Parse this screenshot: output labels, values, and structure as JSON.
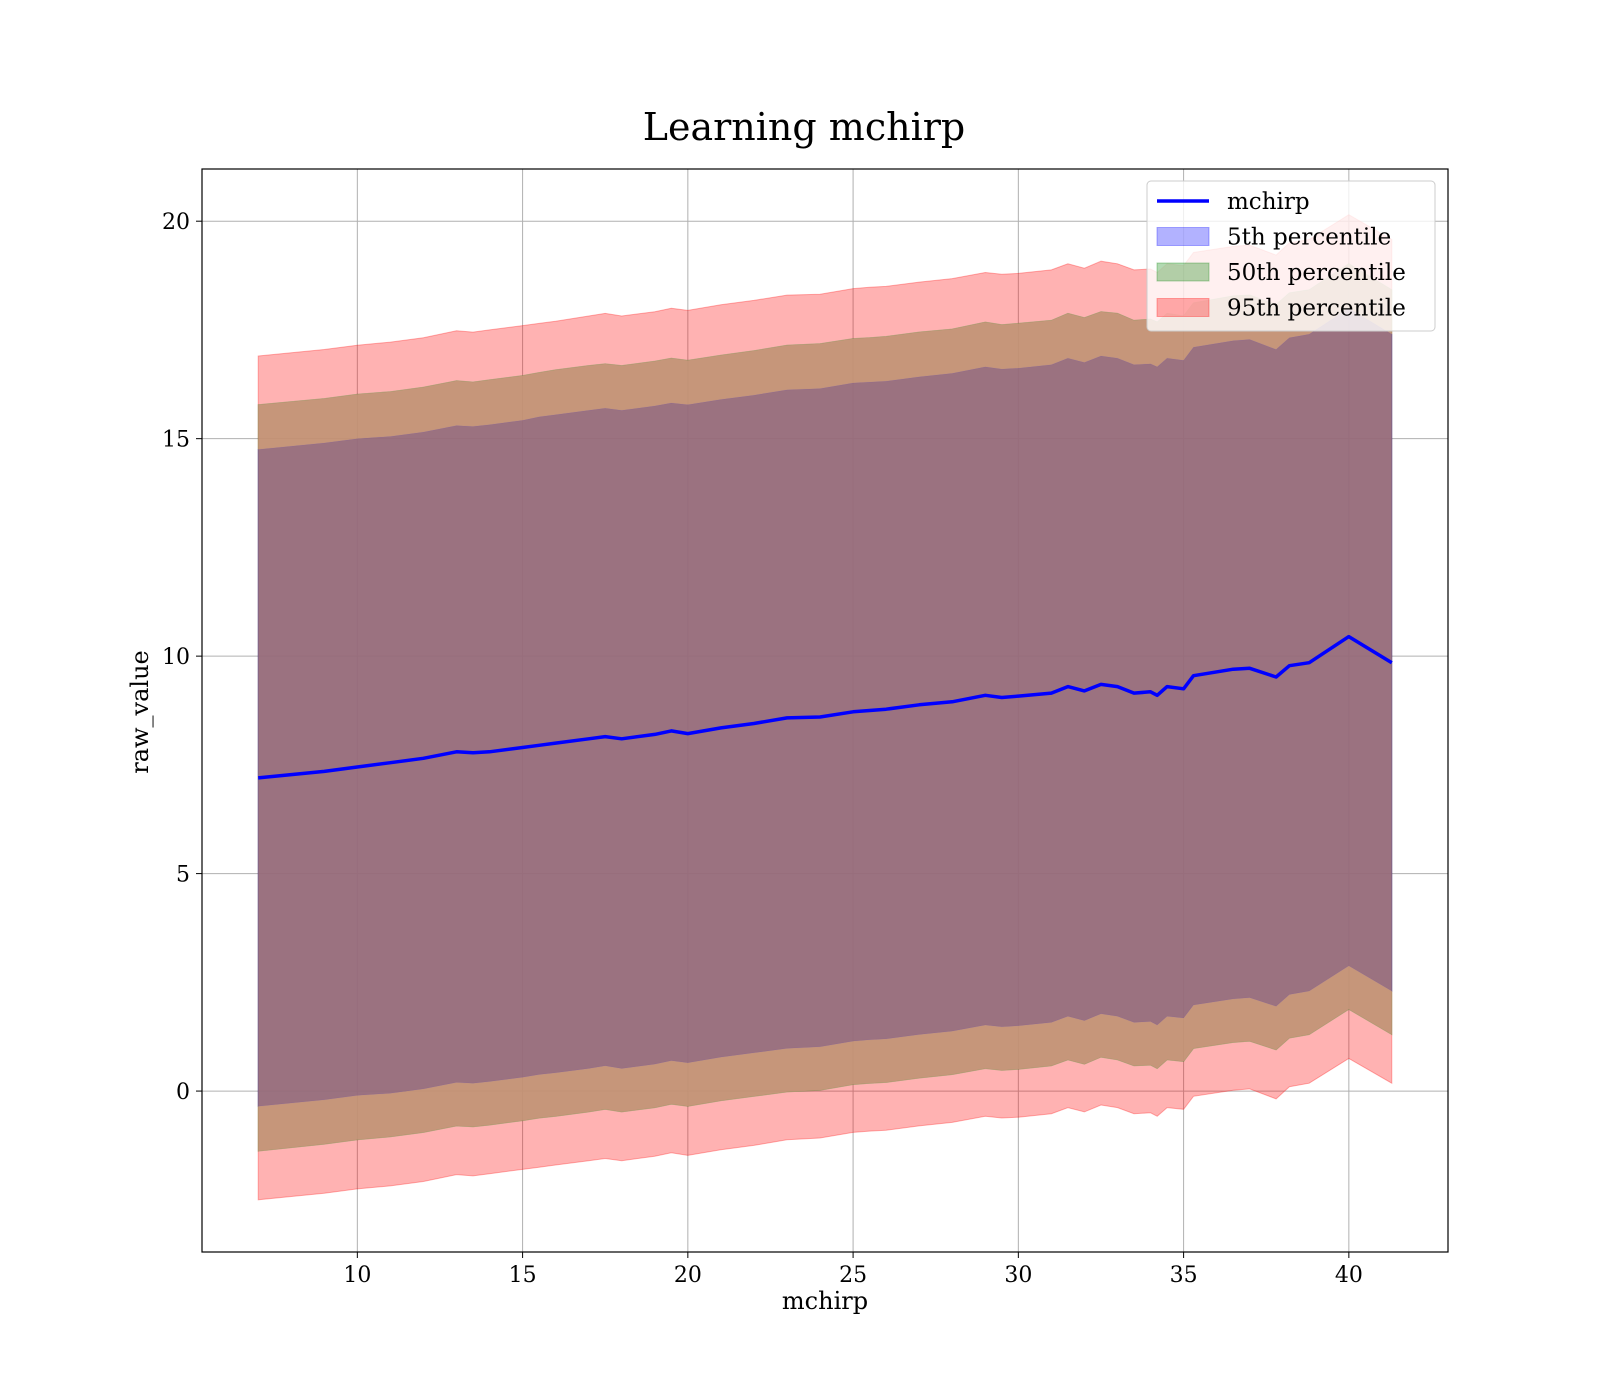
{
  "chart_data": {
    "type": "line",
    "title": "Learning mchirp",
    "xlabel": "mchirp",
    "ylabel": "raw_value",
    "xlim": [
      5.3,
      43.0
    ],
    "ylim": [
      -3.7,
      21.2
    ],
    "xticks": [
      10,
      15,
      20,
      25,
      30,
      35,
      40
    ],
    "yticks": [
      0,
      5,
      10,
      15,
      20
    ],
    "grid": true,
    "legend_position": "top-right",
    "colors": {
      "line": "#0000ff",
      "band_5": "#0000ff",
      "band_50": "#008000",
      "band_95": "#ff0000",
      "overlap_fill": "#a1727a"
    },
    "legend": [
      {
        "label": "mchirp",
        "kind": "line",
        "color": "#0000ff"
      },
      {
        "label": "5th percentile",
        "kind": "patch",
        "color": "#0000ff"
      },
      {
        "label": "50th percentile",
        "kind": "patch",
        "color": "#008000"
      },
      {
        "label": "95th percentile",
        "kind": "patch",
        "color": "#ff0000"
      }
    ],
    "x": [
      7.0,
      9.0,
      10.0,
      11.0,
      12.0,
      13.0,
      13.5,
      14.0,
      15.0,
      15.5,
      16.0,
      17.0,
      17.5,
      18.0,
      19.0,
      19.5,
      20.0,
      21.0,
      22.0,
      23.0,
      24.0,
      25.0,
      25.5,
      26.0,
      27.0,
      28.0,
      29.0,
      29.5,
      30.0,
      31.0,
      31.5,
      32.0,
      32.5,
      33.0,
      33.5,
      34.0,
      34.2,
      34.5,
      35.0,
      35.3,
      36.5,
      37.0,
      37.8,
      38.2,
      38.8,
      40.0,
      41.3
    ],
    "series": [
      {
        "name": "mchirp",
        "values": [
          7.2,
          7.35,
          7.45,
          7.55,
          7.65,
          7.8,
          7.78,
          7.8,
          7.9,
          7.95,
          8.0,
          8.1,
          8.15,
          8.1,
          8.2,
          8.28,
          8.22,
          8.35,
          8.45,
          8.58,
          8.6,
          8.72,
          8.75,
          8.78,
          8.88,
          8.95,
          9.1,
          9.05,
          9.08,
          9.15,
          9.3,
          9.2,
          9.35,
          9.3,
          9.15,
          9.18,
          9.1,
          9.3,
          9.25,
          9.55,
          9.7,
          9.72,
          9.52,
          9.78,
          9.85,
          10.45,
          9.85
        ]
      },
      {
        "name": "5th percentile",
        "upper": [
          14.75,
          14.9,
          15.0,
          15.05,
          15.15,
          15.3,
          15.28,
          15.32,
          15.42,
          15.5,
          15.55,
          15.65,
          15.7,
          15.65,
          15.75,
          15.82,
          15.78,
          15.9,
          16.0,
          16.12,
          16.15,
          16.28,
          16.3,
          16.32,
          16.42,
          16.5,
          16.65,
          16.6,
          16.62,
          16.7,
          16.85,
          16.75,
          16.9,
          16.85,
          16.7,
          16.72,
          16.65,
          16.85,
          16.8,
          17.1,
          17.25,
          17.28,
          17.05,
          17.32,
          17.4,
          18.0,
          17.4
        ],
        "lower": [
          -0.35,
          -0.2,
          -0.1,
          -0.05,
          0.05,
          0.2,
          0.18,
          0.22,
          0.32,
          0.38,
          0.42,
          0.52,
          0.58,
          0.52,
          0.62,
          0.7,
          0.65,
          0.78,
          0.88,
          0.98,
          1.02,
          1.15,
          1.18,
          1.2,
          1.3,
          1.38,
          1.52,
          1.48,
          1.5,
          1.58,
          1.72,
          1.62,
          1.78,
          1.72,
          1.58,
          1.6,
          1.52,
          1.72,
          1.68,
          1.98,
          2.12,
          2.15,
          1.95,
          2.22,
          2.3,
          2.88,
          2.3
        ]
      },
      {
        "name": "50th percentile",
        "upper": [
          15.78,
          15.92,
          16.02,
          16.08,
          16.18,
          16.33,
          16.3,
          16.35,
          16.45,
          16.52,
          16.58,
          16.68,
          16.72,
          16.68,
          16.78,
          16.85,
          16.8,
          16.92,
          17.02,
          17.15,
          17.18,
          17.3,
          17.32,
          17.35,
          17.45,
          17.52,
          17.68,
          17.62,
          17.65,
          17.72,
          17.88,
          17.78,
          17.92,
          17.88,
          17.72,
          17.75,
          17.68,
          17.88,
          17.82,
          18.12,
          18.28,
          18.3,
          18.08,
          18.35,
          18.42,
          19.02,
          18.42
        ],
        "lower": [
          -1.38,
          -1.22,
          -1.12,
          -1.05,
          -0.95,
          -0.8,
          -0.82,
          -0.78,
          -0.68,
          -0.62,
          -0.58,
          -0.48,
          -0.42,
          -0.48,
          -0.38,
          -0.3,
          -0.35,
          -0.22,
          -0.12,
          -0.02,
          0.02,
          0.15,
          0.18,
          0.2,
          0.3,
          0.38,
          0.52,
          0.48,
          0.5,
          0.58,
          0.72,
          0.62,
          0.78,
          0.72,
          0.58,
          0.6,
          0.52,
          0.72,
          0.68,
          0.98,
          1.12,
          1.15,
          0.95,
          1.22,
          1.3,
          1.88,
          1.3
        ]
      },
      {
        "name": "95th percentile",
        "upper": [
          16.9,
          17.05,
          17.15,
          17.22,
          17.32,
          17.48,
          17.45,
          17.5,
          17.6,
          17.65,
          17.7,
          17.82,
          17.88,
          17.82,
          17.92,
          18.0,
          17.95,
          18.08,
          18.18,
          18.3,
          18.32,
          18.45,
          18.48,
          18.5,
          18.6,
          18.68,
          18.82,
          18.78,
          18.8,
          18.88,
          19.02,
          18.92,
          19.08,
          19.02,
          18.88,
          18.9,
          18.82,
          19.02,
          18.98,
          19.28,
          19.42,
          19.45,
          19.22,
          19.5,
          19.58,
          20.15,
          19.58
        ],
        "lower": [
          -2.5,
          -2.35,
          -2.25,
          -2.18,
          -2.08,
          -1.92,
          -1.95,
          -1.9,
          -1.8,
          -1.75,
          -1.7,
          -1.6,
          -1.55,
          -1.6,
          -1.5,
          -1.42,
          -1.48,
          -1.35,
          -1.25,
          -1.12,
          -1.08,
          -0.95,
          -0.92,
          -0.9,
          -0.8,
          -0.72,
          -0.58,
          -0.62,
          -0.6,
          -0.52,
          -0.38,
          -0.48,
          -0.32,
          -0.38,
          -0.52,
          -0.5,
          -0.58,
          -0.38,
          -0.42,
          -0.12,
          0.02,
          0.05,
          -0.18,
          0.1,
          0.18,
          0.75,
          0.18
        ]
      }
    ]
  }
}
